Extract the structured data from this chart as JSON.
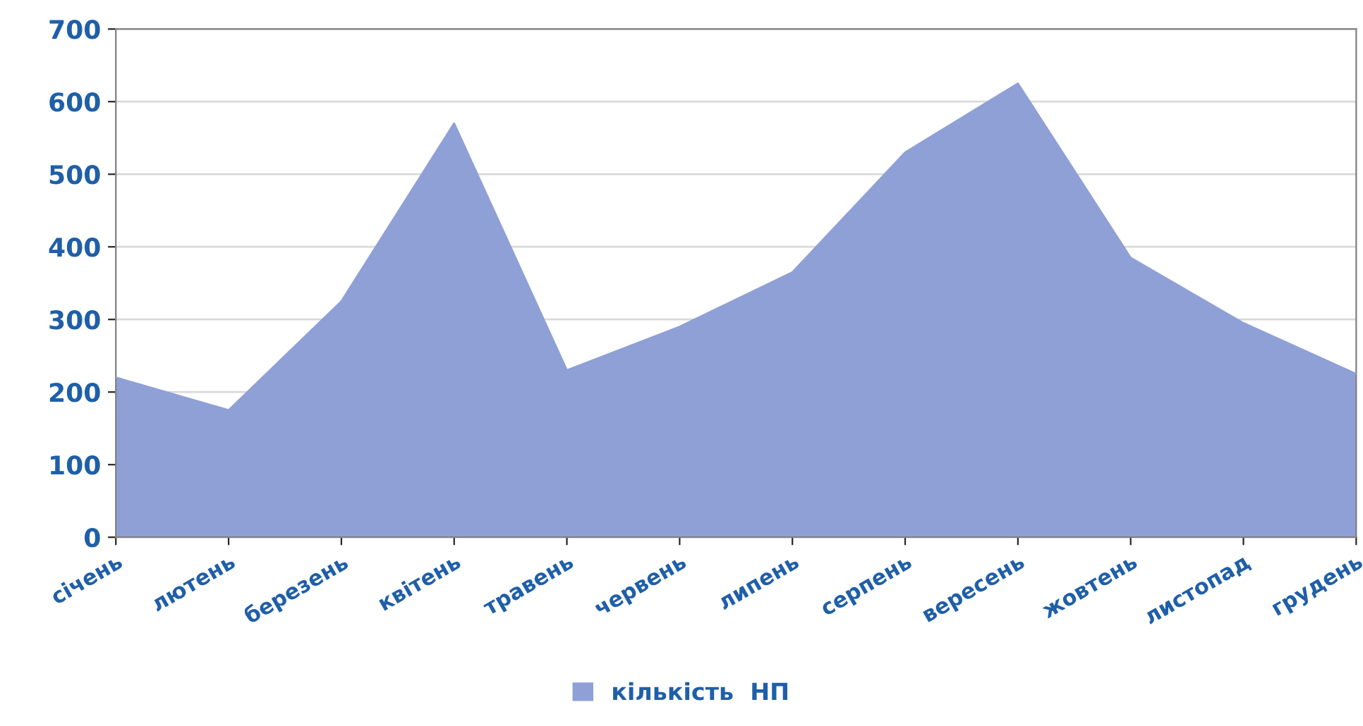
{
  "chart_data": {
    "type": "area",
    "categories": [
      "січень",
      "лютень",
      "березень",
      "квітень",
      "травень",
      "червень",
      "липень",
      "серпень",
      "вересень",
      "жовтень",
      "листопад",
      "грудень"
    ],
    "series": [
      {
        "name": "кількість  НП",
        "color": "#8fa0d6",
        "values": [
          220,
          175,
          325,
          570,
          230,
          290,
          365,
          530,
          625,
          385,
          295,
          225
        ]
      }
    ],
    "ylim": [
      0,
      700
    ],
    "yticks": [
      0,
      100,
      200,
      300,
      400,
      500,
      600,
      700
    ],
    "grid": "y",
    "legend": "bottom"
  }
}
